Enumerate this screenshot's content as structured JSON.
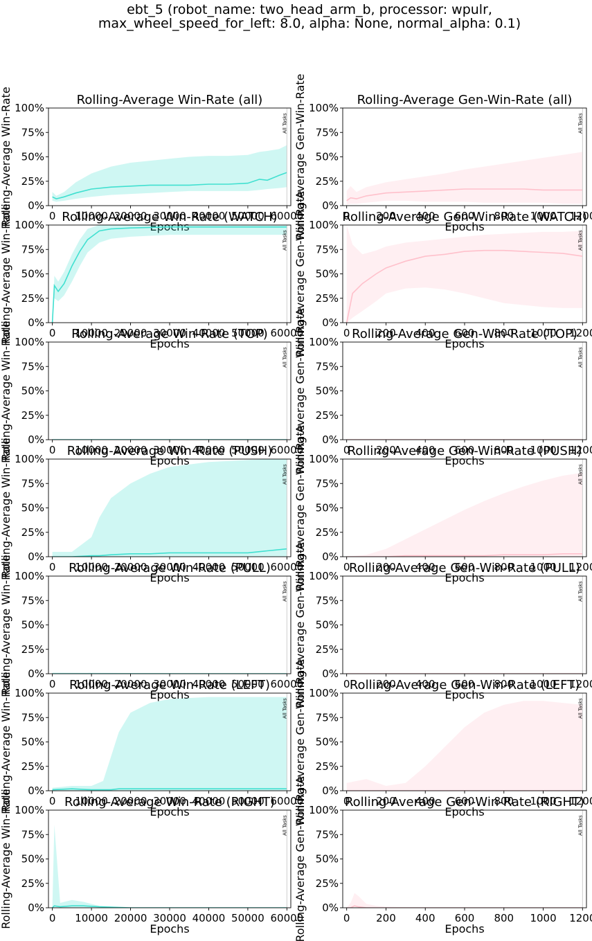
{
  "figure": {
    "title_line1": "ebt_5 (robot_name: two_head_arm_b, processor: wpulr,",
    "title_line2": "max_wheel_speed_for_left: 8.0, alpha: None, normal_alpha: 0.1)"
  },
  "colors": {
    "left_line": "#40e0d0",
    "left_band": "#40e0d0",
    "right_line": "#ffc0cb",
    "right_band": "#ffc0cb",
    "marker_line": "#cccccc"
  },
  "chart_data": [
    {
      "type": "line",
      "title": "Rolling-Average Win-Rate (all)",
      "ylabel": "Rolling-Average Win-Rate",
      "xlabel": "Epochs",
      "xlim": [
        -1000,
        61000
      ],
      "ylim": [
        0,
        1
      ],
      "xticks": [
        0,
        10000,
        20000,
        30000,
        40000,
        50000,
        60000
      ],
      "yticks": [
        "0%",
        "25%",
        "50%",
        "75%",
        "100%"
      ],
      "marker": {
        "x": 60000,
        "label": "All Tasks"
      },
      "x": [
        0,
        1000,
        3000,
        6000,
        10000,
        15000,
        20000,
        25000,
        30000,
        35000,
        40000,
        45000,
        50000,
        53000,
        55000,
        58000,
        60000
      ],
      "mean": [
        0.09,
        0.07,
        0.09,
        0.13,
        0.17,
        0.19,
        0.2,
        0.21,
        0.21,
        0.21,
        0.22,
        0.22,
        0.23,
        0.27,
        0.26,
        0.31,
        0.34
      ],
      "upper": [
        0.14,
        0.1,
        0.14,
        0.24,
        0.33,
        0.4,
        0.44,
        0.46,
        0.48,
        0.5,
        0.51,
        0.51,
        0.52,
        0.55,
        0.56,
        0.58,
        0.62
      ],
      "lower": [
        0.05,
        0.04,
        0.05,
        0.07,
        0.09,
        0.11,
        0.12,
        0.13,
        0.14,
        0.15,
        0.15,
        0.15,
        0.15,
        0.16,
        0.17,
        0.18,
        0.19
      ]
    },
    {
      "type": "line",
      "title": "Rolling-Average Gen-Win-Rate (all)",
      "ylabel": "Rolling-Average Gen-Win-Rate",
      "xlabel": "Epochs",
      "xlim": [
        -20,
        1220
      ],
      "ylim": [
        0,
        1
      ],
      "xticks": [
        0,
        200,
        400,
        600,
        800,
        1000,
        1200
      ],
      "yticks": [
        "0%",
        "25%",
        "50%",
        "75%",
        "100%"
      ],
      "marker": {
        "x": 1200,
        "label": "All Tasks"
      },
      "x": [
        0,
        20,
        50,
        100,
        200,
        300,
        400,
        500,
        600,
        700,
        800,
        900,
        1000,
        1100,
        1200
      ],
      "mean": [
        0.05,
        0.08,
        0.07,
        0.1,
        0.13,
        0.14,
        0.15,
        0.16,
        0.17,
        0.17,
        0.17,
        0.17,
        0.16,
        0.16,
        0.16
      ],
      "upper": [
        0.15,
        0.2,
        0.14,
        0.19,
        0.24,
        0.27,
        0.3,
        0.33,
        0.37,
        0.4,
        0.43,
        0.46,
        0.49,
        0.52,
        0.55
      ],
      "lower": [
        0.01,
        0.02,
        0.02,
        0.03,
        0.05,
        0.05,
        0.04,
        0.04,
        0.04,
        0.03,
        0.03,
        0.03,
        0.03,
        0.02,
        0.02
      ]
    },
    {
      "type": "line",
      "title": "Rolling-Average Win-Rate (WATCH)",
      "ylabel": "Rolling-Average Win-Rate",
      "xlabel": "Epochs",
      "xlim": [
        -1000,
        61000
      ],
      "ylim": [
        0,
        1
      ],
      "xticks": [
        0,
        10000,
        20000,
        30000,
        40000,
        50000,
        60000
      ],
      "yticks": [
        "0%",
        "25%",
        "50%",
        "75%",
        "100%"
      ],
      "marker": {
        "x": 60000,
        "label": "All Tasks"
      },
      "x": [
        0,
        500,
        1500,
        3000,
        5000,
        7000,
        9000,
        12000,
        15000,
        20000,
        30000,
        40000,
        50000,
        60000
      ],
      "mean": [
        0.0,
        0.38,
        0.32,
        0.4,
        0.58,
        0.73,
        0.85,
        0.94,
        0.96,
        0.97,
        0.98,
        0.98,
        0.98,
        0.98
      ],
      "upper": [
        0.0,
        0.48,
        0.42,
        0.52,
        0.7,
        0.85,
        0.96,
        1.0,
        1.0,
        1.0,
        1.0,
        1.0,
        1.0,
        1.0
      ],
      "lower": [
        0.0,
        0.25,
        0.22,
        0.28,
        0.42,
        0.58,
        0.72,
        0.82,
        0.86,
        0.88,
        0.9,
        0.9,
        0.9,
        0.9
      ]
    },
    {
      "type": "line",
      "title": "Rolling-Average Gen-Win-Rate (WATCH)",
      "ylabel": "Rolling-Average Gen-Win-Rate",
      "xlabel": "Epochs",
      "xlim": [
        -20,
        1220
      ],
      "ylim": [
        0,
        1
      ],
      "xticks": [
        0,
        200,
        400,
        600,
        800,
        1000,
        1200
      ],
      "yticks": [
        "0%",
        "25%",
        "50%",
        "75%",
        "100%"
      ],
      "marker": {
        "x": 1200,
        "label": "All Tasks"
      },
      "x": [
        0,
        30,
        80,
        150,
        200,
        300,
        400,
        500,
        600,
        700,
        800,
        900,
        1000,
        1100,
        1200
      ],
      "mean": [
        0.0,
        0.3,
        0.4,
        0.5,
        0.56,
        0.63,
        0.68,
        0.7,
        0.73,
        0.74,
        0.74,
        0.73,
        0.72,
        0.71,
        0.68
      ],
      "upper": [
        1.0,
        0.8,
        0.7,
        0.74,
        0.78,
        0.82,
        0.84,
        0.86,
        0.88,
        0.9,
        0.91,
        0.92,
        0.93,
        0.93,
        0.94
      ],
      "lower": [
        0.0,
        0.05,
        0.12,
        0.22,
        0.3,
        0.35,
        0.36,
        0.34,
        0.3,
        0.25,
        0.2,
        0.18,
        0.16,
        0.15,
        0.15
      ]
    },
    {
      "type": "line",
      "title": "Rolling-Average Win-Rate (TOP)",
      "ylabel": "Rolling-Average Win-Rate",
      "xlabel": "Epochs",
      "xlim": [
        -1000,
        61000
      ],
      "ylim": [
        0,
        1
      ],
      "xticks": [
        0,
        10000,
        20000,
        30000,
        40000,
        50000,
        60000
      ],
      "yticks": [
        "0%",
        "25%",
        "50%",
        "75%",
        "100%"
      ],
      "marker": {
        "x": 60000,
        "label": "All Tasks"
      },
      "x": [
        0,
        60000
      ],
      "mean": [
        0.0,
        0.0
      ],
      "upper": [
        0.0,
        0.0
      ],
      "lower": [
        0.0,
        0.0
      ]
    },
    {
      "type": "line",
      "title": "Rolling-Average Gen-Win-Rate (TOP)",
      "ylabel": "Rolling-Average Gen-Win-Rate",
      "xlabel": "Epochs",
      "xlim": [
        -20,
        1220
      ],
      "ylim": [
        0,
        1
      ],
      "xticks": [
        0,
        200,
        400,
        600,
        800,
        1000,
        1200
      ],
      "yticks": [
        "0%",
        "25%",
        "50%",
        "75%",
        "100%"
      ],
      "marker": {
        "x": 1200,
        "label": "All Tasks"
      },
      "x": [
        0,
        1200
      ],
      "mean": [
        0.0,
        0.0
      ],
      "upper": [
        0.0,
        0.0
      ],
      "lower": [
        0.0,
        0.0
      ]
    },
    {
      "type": "line",
      "title": "Rolling-Average Win-Rate (PUSH)",
      "ylabel": "Rolling-Average Win-Rate",
      "xlabel": "Epochs",
      "xlim": [
        -1000,
        61000
      ],
      "ylim": [
        0,
        1
      ],
      "xticks": [
        0,
        10000,
        20000,
        30000,
        40000,
        50000,
        60000
      ],
      "yticks": [
        "0%",
        "25%",
        "50%",
        "75%",
        "100%"
      ],
      "marker": {
        "x": 60000,
        "label": "All Tasks"
      },
      "x": [
        0,
        5000,
        10000,
        12000,
        15000,
        20000,
        25000,
        30000,
        40000,
        50000,
        55000,
        60000
      ],
      "mean": [
        0.0,
        0.0,
        0.01,
        0.01,
        0.02,
        0.03,
        0.03,
        0.04,
        0.04,
        0.04,
        0.06,
        0.08
      ],
      "upper": [
        0.05,
        0.05,
        0.2,
        0.4,
        0.6,
        0.75,
        0.85,
        0.92,
        0.97,
        0.99,
        1.0,
        1.0
      ],
      "lower": [
        0.0,
        0.0,
        0.0,
        0.0,
        0.0,
        0.0,
        0.0,
        0.0,
        0.0,
        0.0,
        0.0,
        0.0
      ]
    },
    {
      "type": "line",
      "title": "Rolling-Average Gen-Win-Rate (PUSH)",
      "ylabel": "Rolling-Average Gen-Win-Rate",
      "xlabel": "Epochs",
      "xlim": [
        -20,
        1220
      ],
      "ylim": [
        0,
        1
      ],
      "xticks": [
        0,
        200,
        400,
        600,
        800,
        1000,
        1200
      ],
      "yticks": [
        "0%",
        "25%",
        "50%",
        "75%",
        "100%"
      ],
      "marker": {
        "x": 1200,
        "label": "All Tasks"
      },
      "x": [
        0,
        100,
        200,
        300,
        400,
        500,
        600,
        700,
        800,
        900,
        1000,
        1100,
        1200
      ],
      "mean": [
        0.0,
        0.0,
        0.0,
        0.01,
        0.01,
        0.01,
        0.01,
        0.01,
        0.02,
        0.02,
        0.02,
        0.03,
        0.03
      ],
      "upper": [
        0.0,
        0.02,
        0.08,
        0.18,
        0.28,
        0.38,
        0.48,
        0.57,
        0.65,
        0.72,
        0.78,
        0.83,
        0.86
      ],
      "lower": [
        0.0,
        0.0,
        0.0,
        0.0,
        0.0,
        0.0,
        0.0,
        0.0,
        0.0,
        0.0,
        0.0,
        0.0,
        0.0
      ]
    },
    {
      "type": "line",
      "title": "Rolling-Average Win-Rate (PULL)",
      "ylabel": "Rolling-Average Win-Rate",
      "xlabel": "Epochs",
      "xlim": [
        -1000,
        61000
      ],
      "ylim": [
        0,
        1
      ],
      "xticks": [
        0,
        10000,
        20000,
        30000,
        40000,
        50000,
        60000
      ],
      "yticks": [
        "0%",
        "25%",
        "50%",
        "75%",
        "100%"
      ],
      "marker": {
        "x": 60000,
        "label": "All Tasks"
      },
      "x": [
        0,
        60000
      ],
      "mean": [
        0.0,
        0.0
      ],
      "upper": [
        0.01,
        0.0
      ],
      "lower": [
        0.0,
        0.0
      ]
    },
    {
      "type": "line",
      "title": "Rolling-Average Gen-Win-Rate (PULL)",
      "ylabel": "Rolling-Average Gen-Win-Rate",
      "xlabel": "Epochs",
      "xlim": [
        -20,
        1220
      ],
      "ylim": [
        0,
        1
      ],
      "xticks": [
        0,
        200,
        400,
        600,
        800,
        1000,
        1200
      ],
      "yticks": [
        "0%",
        "25%",
        "50%",
        "75%",
        "100%"
      ],
      "marker": {
        "x": 1200,
        "label": "All Tasks"
      },
      "x": [
        0,
        1200
      ],
      "mean": [
        0.0,
        0.0
      ],
      "upper": [
        0.0,
        0.0
      ],
      "lower": [
        0.0,
        0.0
      ]
    },
    {
      "type": "line",
      "title": "Rolling-Average Win-Rate (LEFT)",
      "ylabel": "Rolling-Average Win-Rate",
      "xlabel": "Epochs",
      "xlim": [
        -1000,
        61000
      ],
      "ylim": [
        0,
        1
      ],
      "xticks": [
        0,
        10000,
        20000,
        30000,
        40000,
        50000,
        60000
      ],
      "yticks": [
        "0%",
        "25%",
        "50%",
        "75%",
        "100%"
      ],
      "marker": {
        "x": 60000,
        "label": "All Tasks"
      },
      "x": [
        0,
        5000,
        10000,
        13000,
        15000,
        17000,
        20000,
        25000,
        30000,
        40000,
        50000,
        60000
      ],
      "mean": [
        0.01,
        0.02,
        0.01,
        0.01,
        0.01,
        0.02,
        0.02,
        0.02,
        0.02,
        0.02,
        0.02,
        0.02
      ],
      "upper": [
        0.03,
        0.05,
        0.05,
        0.1,
        0.35,
        0.6,
        0.8,
        0.9,
        0.94,
        0.96,
        0.96,
        0.96
      ],
      "lower": [
        0.0,
        0.0,
        0.0,
        0.0,
        0.0,
        0.0,
        0.0,
        0.0,
        0.0,
        0.0,
        0.0,
        0.0
      ]
    },
    {
      "type": "line",
      "title": "Rolling-Average Gen-Win-Rate (LEFT)",
      "ylabel": "Rolling-Average Gen-Win-Rate",
      "xlabel": "Epochs",
      "xlim": [
        -20,
        1220
      ],
      "ylim": [
        0,
        1
      ],
      "xticks": [
        0,
        200,
        400,
        600,
        800,
        1000,
        1200
      ],
      "yticks": [
        "0%",
        "25%",
        "50%",
        "75%",
        "100%"
      ],
      "marker": {
        "x": 1200,
        "label": "All Tasks"
      },
      "x": [
        0,
        100,
        200,
        300,
        400,
        500,
        600,
        700,
        800,
        900,
        1000,
        1100,
        1200
      ],
      "mean": [
        0.0,
        0.0,
        0.0,
        0.0,
        0.0,
        0.0,
        0.0,
        0.0,
        0.0,
        0.0,
        0.0,
        0.0,
        0.0
      ],
      "upper": [
        0.08,
        0.12,
        0.05,
        0.08,
        0.25,
        0.45,
        0.65,
        0.8,
        0.88,
        0.92,
        0.92,
        0.9,
        0.88
      ],
      "lower": [
        0.0,
        0.0,
        0.0,
        0.0,
        0.0,
        0.0,
        0.0,
        0.0,
        0.0,
        0.0,
        0.0,
        0.0,
        0.0
      ]
    },
    {
      "type": "line",
      "title": "Rolling-Average Win-Rate (RIGHT)",
      "ylabel": "Rolling-Average Win-Rate",
      "xlabel": "Epochs",
      "xlim": [
        -1000,
        61000
      ],
      "ylim": [
        0,
        1
      ],
      "xticks": [
        0,
        10000,
        20000,
        30000,
        40000,
        50000,
        60000
      ],
      "yticks": [
        "0%",
        "25%",
        "50%",
        "75%",
        "100%"
      ],
      "marker": {
        "x": 60000,
        "label": "All Tasks"
      },
      "x": [
        0,
        500,
        2000,
        5000,
        8000,
        12000,
        20000,
        30000,
        40000,
        50000,
        60000
      ],
      "mean": [
        0.0,
        0.02,
        0.01,
        0.02,
        0.02,
        0.01,
        0.0,
        0.0,
        0.0,
        0.0,
        0.0
      ],
      "upper": [
        0.0,
        0.85,
        0.05,
        0.08,
        0.06,
        0.02,
        0.0,
        0.0,
        0.0,
        0.0,
        0.0
      ],
      "lower": [
        0.0,
        0.0,
        0.0,
        0.0,
        0.0,
        0.0,
        0.0,
        0.0,
        0.0,
        0.0,
        0.0
      ]
    },
    {
      "type": "line",
      "title": "Rolling-Average Gen-Win-Rate (RIGHT)",
      "ylabel": "Rolling-Average Gen-Win-Rate",
      "xlabel": "Epochs",
      "xlim": [
        -20,
        1220
      ],
      "ylim": [
        0,
        1
      ],
      "xticks": [
        0,
        200,
        400,
        600,
        800,
        1000,
        1200
      ],
      "yticks": [
        "0%",
        "25%",
        "50%",
        "75%",
        "100%"
      ],
      "marker": {
        "x": 1200,
        "label": "All Tasks"
      },
      "x": [
        0,
        20,
        40,
        60,
        100,
        150,
        200,
        400,
        600,
        800,
        1000,
        1200
      ],
      "mean": [
        0.0,
        0.0,
        0.02,
        0.01,
        0.0,
        0.0,
        0.0,
        0.0,
        0.0,
        0.0,
        0.0,
        0.0
      ],
      "upper": [
        0.0,
        0.05,
        0.15,
        0.12,
        0.04,
        0.02,
        0.01,
        0.0,
        0.0,
        0.0,
        0.0,
        0.0
      ],
      "lower": [
        0.0,
        0.0,
        0.0,
        0.0,
        0.0,
        0.0,
        0.0,
        0.0,
        0.0,
        0.0,
        0.0,
        0.0
      ]
    }
  ]
}
